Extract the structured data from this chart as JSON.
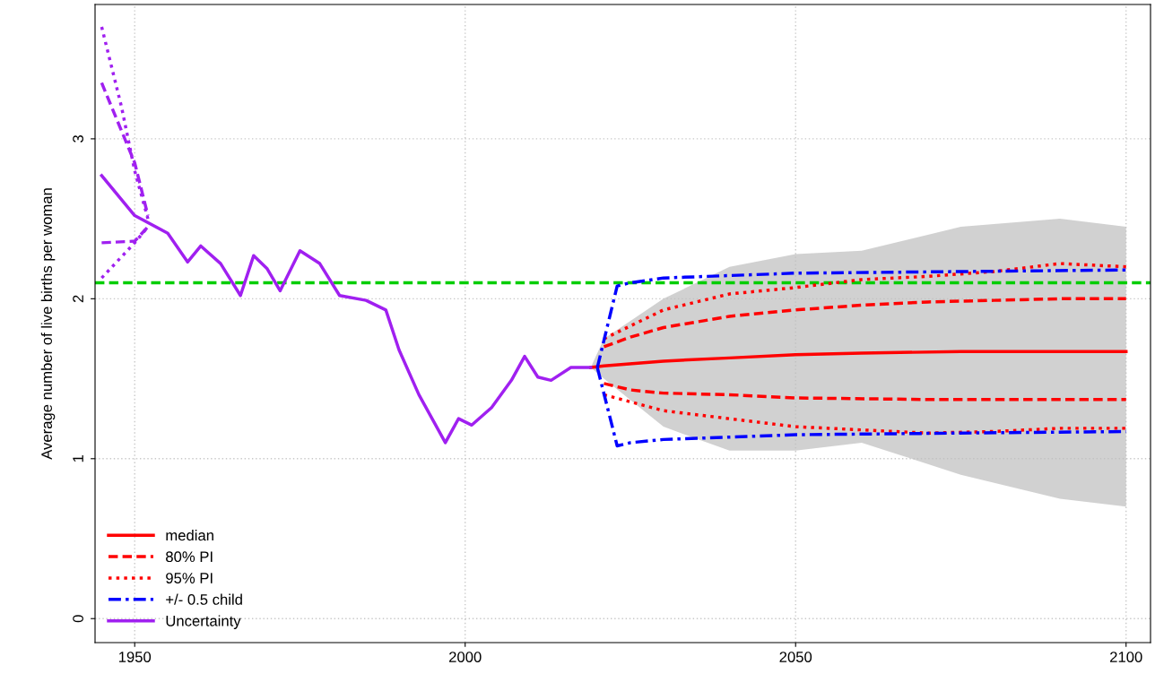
{
  "chart_data": {
    "type": "line",
    "ylabel": "Average number of live births per woman",
    "xlim": [
      1944,
      2103.7
    ],
    "ylim": [
      -0.15,
      3.84
    ],
    "xticks": [
      1950,
      2000,
      2050,
      2100
    ],
    "yticks": [
      0,
      1,
      2,
      3
    ],
    "grid": true,
    "legend": "bottom left",
    "marker": "none",
    "ref_lines": [
      {
        "axis": "y",
        "value": 2.1,
        "color": "#00cd00",
        "line_style": "dashed"
      }
    ],
    "series": [
      {
        "name": "median",
        "color": "#ff0000",
        "line_style": "solid",
        "x": [
          2019,
          2021,
          2030,
          2040,
          2050,
          2060,
          2075,
          2090,
          2100
        ],
        "values": [
          1.57,
          1.58,
          1.61,
          1.63,
          1.65,
          1.66,
          1.67,
          1.67,
          1.67
        ],
        "lower": [
          1.57,
          1.5,
          1.2,
          1.05,
          1.05,
          1.1,
          0.9,
          0.75,
          0.7
        ],
        "upper": [
          1.57,
          1.75,
          2.0,
          2.2,
          2.28,
          2.3,
          2.45,
          2.5,
          2.45
        ]
      },
      {
        "name": "80% PI",
        "color": "#ff0000",
        "line_style": "dashed",
        "x": [
          2021,
          2025,
          2030,
          2040,
          2050,
          2060,
          2070,
          2080,
          2090,
          2100
        ],
        "values": [
          1.7,
          1.76,
          1.82,
          1.89,
          1.93,
          1.96,
          1.98,
          1.99,
          2.0,
          2.0
        ]
      },
      {
        "color": "#ff0000",
        "line_style": "dashed",
        "x": [
          2021,
          2025,
          2030,
          2040,
          2050,
          2070,
          2100
        ],
        "values": [
          1.47,
          1.43,
          1.41,
          1.4,
          1.38,
          1.37,
          1.37
        ]
      },
      {
        "name": "95% PI",
        "color": "#ff0000",
        "line_style": "dotted",
        "x": [
          2021,
          2030,
          2040,
          2050,
          2060,
          2070,
          2080,
          2090,
          2100
        ],
        "values": [
          1.75,
          1.93,
          2.03,
          2.07,
          2.12,
          2.14,
          2.17,
          2.22,
          2.2
        ]
      },
      {
        "color": "#ff0000",
        "line_style": "dotted",
        "x": [
          2021,
          2030,
          2040,
          2050,
          2060,
          2070,
          2080,
          2090,
          2100
        ],
        "values": [
          1.4,
          1.3,
          1.25,
          1.2,
          1.18,
          1.16,
          1.17,
          1.19,
          1.19
        ]
      },
      {
        "name": "+/- 0.5 child",
        "color": "#0000ff",
        "line_style": "dashdot",
        "x": [
          2020,
          2023,
          2025,
          2030,
          2050,
          2100
        ],
        "values": [
          1.57,
          2.08,
          2.1,
          2.13,
          2.16,
          2.18
        ]
      },
      {
        "color": "#0000ff",
        "line_style": "dashdot",
        "x": [
          2020,
          2023,
          2025,
          2030,
          2050,
          2100
        ],
        "values": [
          1.57,
          1.08,
          1.1,
          1.12,
          1.15,
          1.17
        ]
      },
      {
        "name": "Uncertainty",
        "color": "#a020f0",
        "line_style": "solid",
        "x": [
          1945,
          1950,
          1955,
          1958,
          1960,
          1963,
          1966,
          1968,
          1970,
          1972,
          1975,
          1978,
          1981,
          1985,
          1988,
          1990,
          1993,
          1995,
          1997,
          1999,
          2001,
          2004,
          2007,
          2009,
          2011,
          2013,
          2016,
          2019
        ],
        "values": [
          2.77,
          2.52,
          2.41,
          2.23,
          2.33,
          2.22,
          2.02,
          2.27,
          2.19,
          2.05,
          2.3,
          2.22,
          2.02,
          1.99,
          1.93,
          1.68,
          1.4,
          1.25,
          1.1,
          1.25,
          1.21,
          1.32,
          1.49,
          1.64,
          1.51,
          1.49,
          1.57,
          1.57
        ]
      },
      {
        "color": "#a020f0",
        "line_style": "dotted",
        "x": [
          1945,
          1948,
          1950,
          1952
        ],
        "values": [
          3.7,
          3.2,
          2.8,
          2.5
        ]
      },
      {
        "color": "#a020f0",
        "line_style": "dotted",
        "x": [
          1945,
          1950,
          1952
        ],
        "values": [
          2.13,
          2.35,
          2.45
        ]
      },
      {
        "color": "#a020f0",
        "line_style": "dashed",
        "x": [
          1945,
          1950,
          1952
        ],
        "values": [
          3.35,
          2.85,
          2.52
        ]
      },
      {
        "color": "#a020f0",
        "line_style": "dashed",
        "x": [
          1945,
          1950,
          1952
        ],
        "values": [
          2.35,
          2.36,
          2.45
        ]
      }
    ]
  }
}
